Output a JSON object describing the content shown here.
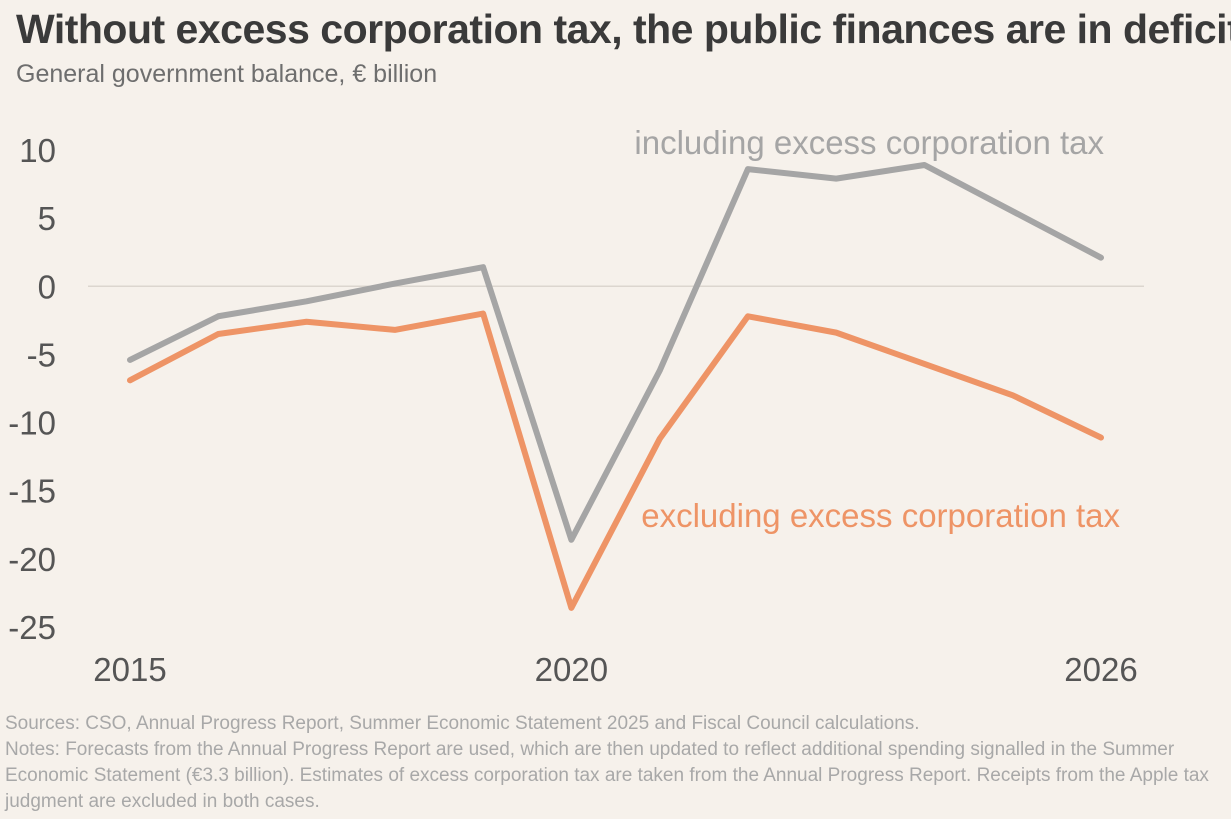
{
  "title": "Without excess corporation tax, the public finances are in deficit",
  "subtitle": "General government balance, € billion",
  "chart_data": {
    "type": "line",
    "x": [
      2015,
      2016,
      2017,
      2018,
      2019,
      2020,
      2021,
      2022,
      2023,
      2024,
      2025,
      2026
    ],
    "x_tick_labels": [
      "2015",
      "2020",
      "2026"
    ],
    "x_tick_values": [
      2015,
      2020,
      2026
    ],
    "y_ticks": [
      10,
      5,
      0,
      -5,
      -10,
      -15,
      -20,
      -25
    ],
    "y_tick_labels": [
      "10",
      "5",
      "0",
      "-5",
      "-10",
      "-15",
      "-20",
      "-25"
    ],
    "ylim": [
      -25,
      10
    ],
    "grid": false,
    "zero_line": true,
    "series": [
      {
        "name": "including excess corporation tax",
        "color": "#a5a5a5",
        "values": [
          -5.4,
          -2.2,
          -1.1,
          0.2,
          1.4,
          -18.6,
          -6.2,
          8.6,
          7.9,
          8.9,
          5.5,
          2.1
        ]
      },
      {
        "name": "excluding excess corporation tax",
        "color": "#ee9466",
        "values": [
          -6.9,
          -3.5,
          -2.6,
          -3.2,
          -2.0,
          -23.6,
          -11.2,
          -2.2,
          -3.4,
          -5.7,
          -8.0,
          -11.1
        ]
      }
    ]
  },
  "sources": "Sources: CSO, Annual Progress Report, Summer Economic Statement 2025 and Fiscal Council calculations.",
  "notes": "Notes: Forecasts from the Annual Progress Report are used, which are then updated to reflect additional spending signalled in the Summer Economic Statement (€3.3 billion). Estimates of excess corporation tax are taken from the Annual Progress Report. Receipts from the Apple tax judgment are excluded in both cases."
}
